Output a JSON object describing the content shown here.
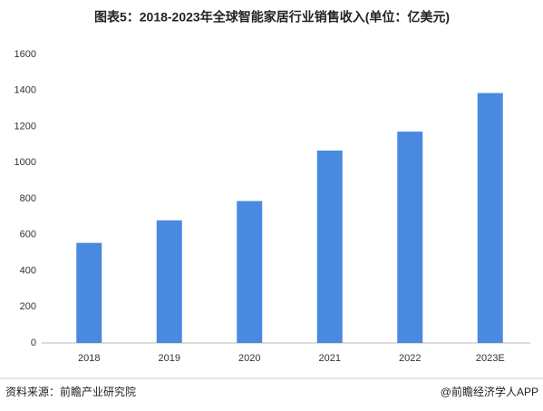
{
  "chart_data": {
    "type": "bar",
    "title": "图表5：2018-2023年全球智能家居行业销售收入(单位：亿美元)",
    "categories": [
      "2018",
      "2019",
      "2020",
      "2021",
      "2022",
      "2023E"
    ],
    "values": [
      555,
      680,
      787,
      1067,
      1172,
      1386
    ],
    "color": "#4a89e0",
    "ylim": [
      0,
      1600
    ],
    "yticks": [
      0,
      200,
      400,
      600,
      800,
      1000,
      1200,
      1400,
      1600
    ],
    "grid": false,
    "source": "资料来源：前瞻产业研究院",
    "credit": "@前瞻经济学人APP"
  }
}
